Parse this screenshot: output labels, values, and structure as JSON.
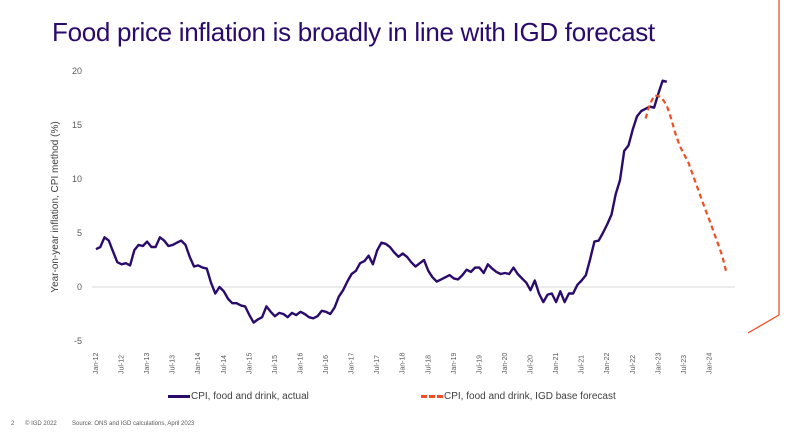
{
  "slide": {
    "title": "Food price inflation is broadly in line with IGD forecast",
    "page_number": "2",
    "copyright": "© IGD 2022",
    "source": "Source: ONS and IGD calculations, April 2023",
    "accent_color": "#f04e23",
    "title_color": "#2a0a6b"
  },
  "chart_data": {
    "type": "line",
    "title": "Food price inflation is broadly in line with IGD forecast",
    "xlabel": "",
    "ylabel": "Year-on-year inflation, CPI method (%)",
    "ylim": [
      -5,
      20
    ],
    "yticks": [
      "20",
      "15",
      "10",
      "5",
      "0",
      "-5"
    ],
    "ytick_values": [
      20,
      15,
      10,
      5,
      0,
      -5
    ],
    "xtick_labels": [
      "Jan-12",
      "Jul-12",
      "Jan-13",
      "Jul-13",
      "Jan-14",
      "Jul-14",
      "Jan-15",
      "Jul-15",
      "Jan-16",
      "Jul-16",
      "Jan-17",
      "Jul-17",
      "Jan-18",
      "Jul-18",
      "Jan-19",
      "Jul-19",
      "Jan-20",
      "Jul-20",
      "Jan-21",
      "Jul-21",
      "Jan-22",
      "Jul-22",
      "Jan-23",
      "Jul-23",
      "Jan-24"
    ],
    "x_start": "Jan-12",
    "x_frequency": "monthly",
    "grid": "zero line only",
    "legend_position": "bottom",
    "series": [
      {
        "name": "CPI, food and drink, actual",
        "color": "#2a0a6b",
        "style": "solid",
        "start": "Jan-12",
        "values": [
          3.5,
          3.7,
          4.6,
          4.3,
          3.3,
          2.3,
          2.1,
          2.2,
          2.0,
          3.4,
          3.9,
          3.8,
          4.2,
          3.7,
          3.7,
          4.6,
          4.3,
          3.8,
          3.9,
          4.1,
          4.3,
          3.9,
          2.8,
          1.9,
          2.0,
          1.8,
          1.7,
          0.4,
          -0.6,
          0.0,
          -0.4,
          -1.1,
          -1.5,
          -1.5,
          -1.7,
          -1.8,
          -2.6,
          -3.3,
          -3.0,
          -2.8,
          -1.8,
          -2.3,
          -2.7,
          -2.4,
          -2.5,
          -2.8,
          -2.4,
          -2.6,
          -2.3,
          -2.5,
          -2.8,
          -2.9,
          -2.7,
          -2.2,
          -2.3,
          -2.5,
          -1.9,
          -0.9,
          -0.3,
          0.5,
          1.2,
          1.5,
          2.2,
          2.4,
          2.9,
          2.1,
          3.4,
          4.1,
          4.0,
          3.7,
          3.2,
          2.8,
          3.1,
          2.8,
          2.3,
          1.9,
          2.2,
          2.5,
          1.5,
          0.9,
          0.5,
          0.7,
          0.9,
          1.1,
          0.8,
          0.7,
          1.1,
          1.6,
          1.4,
          1.8,
          1.8,
          1.3,
          2.1,
          1.7,
          1.4,
          1.2,
          1.3,
          1.2,
          1.8,
          1.2,
          0.8,
          0.4,
          -0.3,
          0.6,
          -0.6,
          -1.4,
          -0.7,
          -0.6,
          -1.4,
          -0.4,
          -1.4,
          -0.6,
          -0.6,
          0.2,
          0.6,
          1.1,
          2.6,
          4.2,
          4.3,
          5.0,
          5.8,
          6.7,
          8.6,
          9.9,
          12.6,
          13.1,
          14.6,
          15.8,
          16.3,
          16.5,
          16.7,
          16.6,
          17.9,
          19.1,
          19.0
        ]
      },
      {
        "name": "CPI, food and drink, IGD base forecast",
        "color": "#f04e23",
        "style": "dashed",
        "start": "Oct-22",
        "values": [
          15.6,
          16.9,
          17.7,
          17.7,
          17.4,
          16.8,
          15.6,
          14.2,
          13.1,
          12.3,
          11.6,
          10.5,
          9.4,
          8.3,
          7.2,
          6.2,
          5.1,
          4.0,
          2.9,
          1.3
        ]
      }
    ]
  },
  "legend": {
    "items": [
      {
        "label": "CPI, food and drink, actual",
        "color": "#2a0a6b",
        "style": "solid"
      },
      {
        "label": "CPI, food and drink, IGD base forecast",
        "color": "#f04e23",
        "style": "dashed"
      }
    ]
  }
}
